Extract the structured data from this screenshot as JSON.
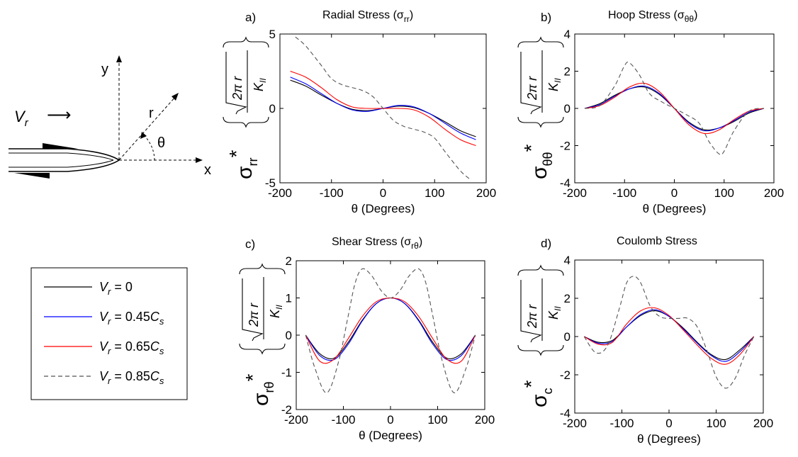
{
  "diagram": {
    "vr_label": "V",
    "vr_sub": "r",
    "arrow_glyph": "⟶",
    "y_label": "y",
    "x_label": "x",
    "r_label": "r",
    "theta_label": "θ"
  },
  "legend": {
    "entries": [
      {
        "label": "V",
        "sub": "r",
        "rest": " = 0",
        "color": "#000000",
        "dash": ""
      },
      {
        "label": "V",
        "sub": "r",
        "rest": " = 0.45",
        "tail": "C",
        "tail_sub": "s",
        "color": "#0000ff",
        "dash": ""
      },
      {
        "label": "V",
        "sub": "r",
        "rest": " = 0.65",
        "tail": "C",
        "tail_sub": "s",
        "color": "#ff0000",
        "dash": ""
      },
      {
        "label": "V",
        "sub": "r",
        "rest": " = 0.85",
        "tail": "C",
        "tail_sub": "s",
        "color": "#555555",
        "dash": "6,4"
      }
    ]
  },
  "common": {
    "ylabel_factor": "√2πr / K_II",
    "norm_top": "2π r",
    "norm_bottom": "K",
    "norm_bottom_sub": "II",
    "xlabel": "θ (Degrees)"
  },
  "chart_data": [
    {
      "panel": "a)",
      "type": "line",
      "title": "Radial Stress",
      "title_sym": "σ",
      "title_sub": "rr",
      "ylabel_sym": "σ",
      "ylabel_sub": "rr",
      "xlabel": "θ (Degrees)",
      "xlim": [
        -200,
        200
      ],
      "ylim": [
        -5,
        5
      ],
      "xticks": [
        -200,
        -100,
        0,
        100,
        200
      ],
      "yticks": [
        -5,
        0,
        5
      ],
      "series": [
        {
          "color": "#000000",
          "dash": "",
          "x": [
            -180,
            -150,
            -120,
            -90,
            -60,
            -30,
            0,
            30,
            60,
            90,
            120,
            150,
            180
          ],
          "y": [
            1.9,
            1.5,
            0.9,
            0.35,
            -0.05,
            -0.15,
            0,
            0.15,
            0.05,
            -0.35,
            -0.9,
            -1.5,
            -1.9
          ]
        },
        {
          "color": "#0000ff",
          "dash": "",
          "x": [
            -180,
            -150,
            -120,
            -90,
            -60,
            -30,
            0,
            30,
            60,
            90,
            120,
            150,
            180
          ],
          "y": [
            2.1,
            1.65,
            1.0,
            0.35,
            -0.1,
            -0.2,
            0,
            0.2,
            0.1,
            -0.35,
            -1.0,
            -1.65,
            -2.1
          ]
        },
        {
          "color": "#ff0000",
          "dash": "",
          "x": [
            -180,
            -150,
            -120,
            -90,
            -60,
            -30,
            0,
            30,
            60,
            90,
            120,
            150,
            180
          ],
          "y": [
            2.5,
            2.1,
            1.4,
            0.6,
            0.1,
            0.0,
            0,
            0.0,
            -0.1,
            -0.6,
            -1.4,
            -2.1,
            -2.5
          ]
        },
        {
          "color": "#555555",
          "dash": "6,4",
          "x": [
            -170,
            -150,
            -120,
            -100,
            -80,
            -60,
            -40,
            -20,
            0,
            20,
            40,
            60,
            80,
            100,
            120,
            150,
            170
          ],
          "y": [
            4.8,
            4.2,
            2.9,
            2.0,
            1.6,
            1.4,
            1.2,
            0.8,
            0,
            -0.8,
            -1.2,
            -1.4,
            -1.6,
            -2.0,
            -2.9,
            -4.2,
            -4.8
          ]
        }
      ]
    },
    {
      "panel": "b)",
      "type": "line",
      "title": "Hoop Stress",
      "title_sym": "σ",
      "title_sub": "θθ",
      "ylabel_sym": "σ",
      "ylabel_sub": "θθ",
      "xlabel": "θ (Degrees)",
      "xlim": [
        -200,
        200
      ],
      "ylim": [
        -4,
        4
      ],
      "xticks": [
        -200,
        -100,
        0,
        100,
        200
      ],
      "yticks": [
        -4,
        -2,
        0,
        2,
        4
      ],
      "series": [
        {
          "color": "#000000",
          "dash": "",
          "x": [
            -180,
            -150,
            -120,
            -90,
            -60,
            -30,
            0,
            30,
            60,
            90,
            120,
            150,
            180
          ],
          "y": [
            0,
            0.25,
            0.7,
            1.05,
            1.15,
            0.75,
            0,
            -0.75,
            -1.15,
            -1.05,
            -0.7,
            -0.25,
            0
          ]
        },
        {
          "color": "#0000ff",
          "dash": "",
          "x": [
            -180,
            -150,
            -120,
            -90,
            -60,
            -30,
            0,
            30,
            60,
            90,
            120,
            150,
            180
          ],
          "y": [
            0,
            0.2,
            0.65,
            1.05,
            1.2,
            0.8,
            0,
            -0.8,
            -1.2,
            -1.05,
            -0.65,
            -0.2,
            0
          ]
        },
        {
          "color": "#ff0000",
          "dash": "",
          "x": [
            -180,
            -150,
            -120,
            -90,
            -60,
            -30,
            0,
            30,
            60,
            90,
            120,
            150,
            180
          ],
          "y": [
            0,
            0.15,
            0.6,
            1.15,
            1.35,
            0.9,
            0,
            -0.9,
            -1.35,
            -1.15,
            -0.6,
            -0.15,
            0
          ]
        },
        {
          "color": "#555555",
          "dash": "6,4",
          "x": [
            -180,
            -150,
            -120,
            -100,
            -90,
            -70,
            -50,
            -25,
            0,
            25,
            50,
            70,
            90,
            100,
            120,
            150,
            180
          ],
          "y": [
            0,
            0.15,
            1.2,
            2.3,
            2.45,
            1.8,
            0.8,
            0.35,
            0,
            -0.35,
            -0.8,
            -1.8,
            -2.45,
            -2.3,
            -1.2,
            -0.15,
            0
          ]
        }
      ]
    },
    {
      "panel": "c)",
      "type": "line",
      "title": "Shear Stress",
      "title_sym": "σ",
      "title_sub": "rθ",
      "ylabel_sym": "σ",
      "ylabel_sub": "rθ",
      "xlabel": "θ (Degrees)",
      "xlim": [
        -200,
        200
      ],
      "ylim": [
        -2,
        2
      ],
      "xticks": [
        -200,
        -100,
        0,
        100,
        200
      ],
      "yticks": [
        -2,
        -1,
        0,
        1,
        2
      ],
      "series": [
        {
          "color": "#000000",
          "dash": "",
          "x": [
            -180,
            -150,
            -120,
            -90,
            -60,
            -30,
            0,
            30,
            60,
            90,
            120,
            150,
            180
          ],
          "y": [
            0,
            -0.5,
            -0.62,
            -0.2,
            0.4,
            0.85,
            1.0,
            0.85,
            0.4,
            -0.2,
            -0.62,
            -0.5,
            0
          ]
        },
        {
          "color": "#0000ff",
          "dash": "",
          "x": [
            -180,
            -150,
            -120,
            -90,
            -60,
            -30,
            0,
            30,
            60,
            90,
            120,
            150,
            180
          ],
          "y": [
            0,
            -0.55,
            -0.66,
            -0.25,
            0.38,
            0.85,
            1.0,
            0.85,
            0.38,
            -0.25,
            -0.66,
            -0.55,
            0
          ]
        },
        {
          "color": "#ff0000",
          "dash": "",
          "x": [
            -180,
            -150,
            -120,
            -90,
            -60,
            -30,
            0,
            30,
            60,
            90,
            120,
            150,
            180
          ],
          "y": [
            0,
            -0.7,
            -0.65,
            -0.1,
            0.5,
            0.9,
            1.0,
            0.9,
            0.5,
            -0.1,
            -0.65,
            -0.7,
            0
          ]
        },
        {
          "color": "#555555",
          "dash": "6,4",
          "x": [
            -180,
            -160,
            -135,
            -110,
            -90,
            -75,
            -60,
            -40,
            -20,
            0,
            20,
            40,
            60,
            75,
            90,
            110,
            135,
            160,
            180
          ],
          "y": [
            0,
            -0.9,
            -1.55,
            -0.7,
            0.5,
            1.4,
            1.78,
            1.6,
            1.2,
            1.0,
            1.2,
            1.6,
            1.78,
            1.4,
            0.5,
            -0.7,
            -1.55,
            -0.9,
            0
          ]
        }
      ]
    },
    {
      "panel": "d)",
      "type": "line",
      "title": "Coulomb Stress",
      "title_sym": "",
      "title_sub": "",
      "ylabel_sym": "σ",
      "ylabel_sub": "c",
      "xlabel": "θ (Degrees)",
      "xlim": [
        -200,
        200
      ],
      "ylim": [
        -4,
        4
      ],
      "xticks": [
        -200,
        -100,
        0,
        100,
        200
      ],
      "yticks": [
        -4,
        -2,
        0,
        2,
        4
      ],
      "series": [
        {
          "color": "#000000",
          "dash": "",
          "x": [
            -180,
            -150,
            -120,
            -90,
            -60,
            -30,
            0,
            30,
            60,
            90,
            120,
            150,
            180
          ],
          "y": [
            0,
            -0.3,
            -0.2,
            0.5,
            1.1,
            1.35,
            1.05,
            0.45,
            -0.3,
            -0.95,
            -1.2,
            -0.7,
            0
          ]
        },
        {
          "color": "#0000ff",
          "dash": "",
          "x": [
            -180,
            -150,
            -120,
            -90,
            -60,
            -30,
            0,
            30,
            60,
            90,
            120,
            150,
            180
          ],
          "y": [
            0,
            -0.35,
            -0.25,
            0.5,
            1.15,
            1.4,
            1.05,
            0.4,
            -0.35,
            -1.0,
            -1.3,
            -0.8,
            0
          ]
        },
        {
          "color": "#ff0000",
          "dash": "",
          "x": [
            -180,
            -150,
            -120,
            -90,
            -60,
            -30,
            0,
            30,
            60,
            90,
            120,
            150,
            180
          ],
          "y": [
            0,
            -0.4,
            -0.3,
            0.65,
            1.35,
            1.5,
            1.1,
            0.35,
            -0.45,
            -1.15,
            -1.45,
            -0.95,
            0
          ]
        },
        {
          "color": "#555555",
          "dash": "6,4",
          "x": [
            -180,
            -155,
            -130,
            -105,
            -90,
            -75,
            -60,
            -40,
            -20,
            0,
            20,
            40,
            60,
            80,
            100,
            120,
            140,
            160,
            180
          ],
          "y": [
            0,
            -0.85,
            -0.45,
            1.5,
            2.8,
            3.15,
            2.8,
            1.6,
            1.05,
            0.95,
            0.95,
            0.95,
            0.5,
            -0.7,
            -2.1,
            -2.7,
            -2.2,
            -1.0,
            0
          ]
        }
      ]
    }
  ]
}
